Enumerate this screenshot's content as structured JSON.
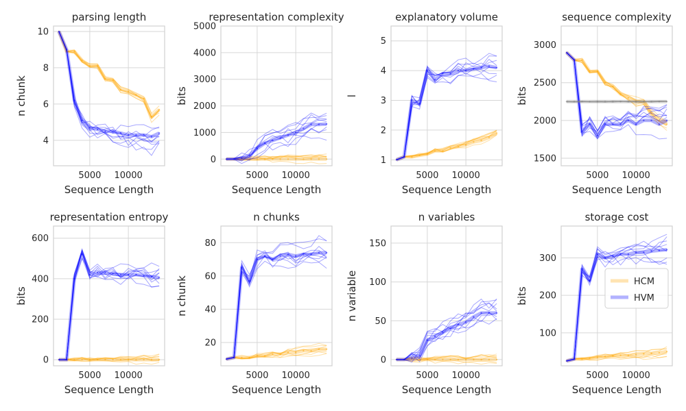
{
  "colors": {
    "HCM": "#ffa500",
    "HVM": "#0000ff",
    "control": "#808080",
    "grid": "#d6d6d6"
  },
  "chart_data": [
    {
      "type": "line",
      "title": "parsing length",
      "xlabel": "Sequence Length",
      "ylabel": "n chunk",
      "xlim": [
        300,
        14700
      ],
      "ylim": [
        2.6,
        10.3
      ],
      "xticks": [
        5000,
        10000
      ],
      "yticks": [
        4,
        6,
        8,
        10
      ],
      "x": [
        1000,
        2000,
        3000,
        4000,
        5000,
        6000,
        7000,
        8000,
        9000,
        10000,
        11000,
        12000,
        13000,
        14000
      ],
      "series": [
        {
          "name": "HCM",
          "values": [
            10.0,
            8.9,
            8.9,
            8.4,
            8.1,
            8.1,
            7.4,
            7.3,
            6.8,
            6.7,
            6.5,
            6.3,
            5.3,
            5.7
          ]
        },
        {
          "name": "HVM",
          "values": [
            10.0,
            9.0,
            6.2,
            5.1,
            4.7,
            4.6,
            4.5,
            4.5,
            4.4,
            4.3,
            4.3,
            4.3,
            4.2,
            4.4
          ]
        }
      ],
      "legend": "none"
    },
    {
      "type": "line",
      "title": "representation complexity",
      "xlabel": "Sequence Length",
      "ylabel": "bits",
      "xlim": [
        300,
        14700
      ],
      "ylim": [
        -250,
        5000
      ],
      "xticks": [
        5000,
        10000
      ],
      "yticks": [
        0,
        1000,
        2000,
        3000,
        4000,
        5000
      ],
      "x": [
        1000,
        2000,
        3000,
        4000,
        5000,
        6000,
        7000,
        8000,
        9000,
        10000,
        11000,
        12000,
        13000,
        14000
      ],
      "series": [
        {
          "name": "HCM",
          "values": [
            0,
            0,
            0,
            0,
            0,
            0,
            0,
            0,
            0,
            0,
            0,
            0,
            0,
            0
          ]
        },
        {
          "name": "HVM",
          "values": [
            0,
            5,
            30,
            150,
            400,
            600,
            700,
            800,
            900,
            1000,
            1150,
            1300,
            1300,
            1320
          ]
        }
      ],
      "legend": "none"
    },
    {
      "type": "line",
      "title": "explanatory volume",
      "xlabel": "Sequence Length",
      "ylabel": "l",
      "xlim": [
        300,
        14700
      ],
      "ylim": [
        0.8,
        5.5
      ],
      "xticks": [
        5000,
        10000
      ],
      "yticks": [
        1,
        2,
        3,
        4,
        5
      ],
      "x": [
        1000,
        2000,
        3000,
        4000,
        5000,
        6000,
        7000,
        8000,
        9000,
        10000,
        11000,
        12000,
        13000,
        14000
      ],
      "series": [
        {
          "name": "HCM",
          "values": [
            1.0,
            1.1,
            1.1,
            1.15,
            1.2,
            1.3,
            1.3,
            1.4,
            1.45,
            1.5,
            1.6,
            1.65,
            1.75,
            1.9
          ]
        },
        {
          "name": "HVM",
          "values": [
            1.0,
            1.1,
            3.0,
            2.9,
            4.0,
            3.7,
            3.9,
            3.9,
            4.0,
            4.0,
            4.05,
            4.1,
            4.15,
            4.1
          ]
        }
      ],
      "legend": "none"
    },
    {
      "type": "line",
      "title": "sequence complexity",
      "xlabel": "Sequence Length",
      "ylabel": "bits",
      "xlim": [
        300,
        14700
      ],
      "ylim": [
        1400,
        3250
      ],
      "xticks": [
        5000,
        10000
      ],
      "yticks": [
        1500,
        2000,
        2500,
        3000
      ],
      "x": [
        1000,
        2000,
        3000,
        4000,
        5000,
        6000,
        7000,
        8000,
        9000,
        10000,
        11000,
        12000,
        13000,
        14000
      ],
      "series": [
        {
          "name": "HCM",
          "values": [
            2900,
            2800,
            2800,
            2650,
            2650,
            2500,
            2450,
            2350,
            2300,
            2250,
            2250,
            2100,
            2000,
            1950
          ]
        },
        {
          "name": "HVM",
          "values": [
            2900,
            2800,
            1850,
            1950,
            1800,
            1950,
            1950,
            1950,
            2000,
            1950,
            2000,
            2000,
            1950,
            2000
          ]
        },
        {
          "name": "",
          "values": [
            2250,
            2250,
            2250,
            2250,
            2250,
            2250,
            2250,
            2250,
            2250,
            2250,
            2250,
            2250,
            2250,
            2250
          ]
        }
      ],
      "legend": "none"
    },
    {
      "type": "line",
      "title": "representation entropy",
      "xlabel": "Sequence Length",
      "ylabel": "bits",
      "xlim": [
        300,
        14700
      ],
      "ylim": [
        -30,
        660
      ],
      "xticks": [
        5000,
        10000
      ],
      "yticks": [
        0,
        200,
        400,
        600
      ],
      "x": [
        1000,
        2000,
        3000,
        4000,
        5000,
        6000,
        7000,
        8000,
        9000,
        10000,
        11000,
        12000,
        13000,
        14000
      ],
      "series": [
        {
          "name": "HCM",
          "values": [
            0,
            0,
            0,
            0,
            0,
            0,
            0,
            0,
            0,
            0,
            0,
            0,
            0,
            0
          ]
        },
        {
          "name": "HVM",
          "values": [
            0,
            0,
            400,
            520,
            420,
            430,
            430,
            425,
            420,
            420,
            420,
            415,
            410,
            405
          ]
        }
      ],
      "legend": "none"
    },
    {
      "type": "line",
      "title": "n chunks",
      "xlabel": "Sequence Length",
      "ylabel": "n chunk",
      "xlim": [
        300,
        14700
      ],
      "ylim": [
        6,
        90
      ],
      "xticks": [
        5000,
        10000
      ],
      "yticks": [
        20,
        40,
        60,
        80
      ],
      "x": [
        1000,
        2000,
        3000,
        4000,
        5000,
        6000,
        7000,
        8000,
        9000,
        10000,
        11000,
        12000,
        13000,
        14000
      ],
      "series": [
        {
          "name": "HCM",
          "values": [
            10,
            11,
            11,
            11,
            12,
            12,
            13,
            13,
            14,
            14,
            15,
            15,
            16,
            16
          ]
        },
        {
          "name": "HVM",
          "values": [
            10,
            11,
            65,
            57,
            70,
            72,
            70,
            72,
            73,
            72,
            73,
            73,
            74,
            74
          ]
        }
      ],
      "legend": "none"
    },
    {
      "type": "line",
      "title": "n variables",
      "xlabel": "Sequence Length",
      "ylabel": "n variable",
      "xlim": [
        300,
        14700
      ],
      "ylim": [
        -8,
        172
      ],
      "xticks": [
        5000,
        10000
      ],
      "yticks": [
        0,
        50,
        100,
        150
      ],
      "x": [
        1000,
        2000,
        3000,
        4000,
        5000,
        6000,
        7000,
        8000,
        9000,
        10000,
        11000,
        12000,
        13000,
        14000
      ],
      "series": [
        {
          "name": "HCM",
          "values": [
            0,
            0,
            0,
            0,
            0,
            0,
            0,
            0,
            0,
            0,
            0,
            0,
            0,
            0
          ]
        },
        {
          "name": "HVM",
          "values": [
            0,
            0,
            2,
            5,
            25,
            30,
            35,
            40,
            45,
            48,
            55,
            60,
            60,
            60
          ]
        }
      ],
      "legend": "none"
    },
    {
      "type": "line",
      "title": "storage cost",
      "xlabel": "Sequence Length",
      "ylabel": "bits",
      "xlim": [
        300,
        14700
      ],
      "ylim": [
        12,
        385
      ],
      "xticks": [
        5000,
        10000
      ],
      "yticks": [
        100,
        200,
        300
      ],
      "x": [
        1000,
        2000,
        3000,
        4000,
        5000,
        6000,
        7000,
        8000,
        9000,
        10000,
        11000,
        12000,
        13000,
        14000
      ],
      "series": [
        {
          "name": "HCM",
          "values": [
            25,
            30,
            30,
            32,
            35,
            37,
            38,
            40,
            40,
            42,
            44,
            45,
            47,
            50
          ]
        },
        {
          "name": "HVM",
          "values": [
            25,
            30,
            270,
            240,
            310,
            300,
            305,
            310,
            310,
            315,
            315,
            318,
            320,
            322
          ]
        }
      ],
      "legend": "center-right",
      "legend_entries": [
        "HCM",
        "HVM"
      ]
    }
  ]
}
